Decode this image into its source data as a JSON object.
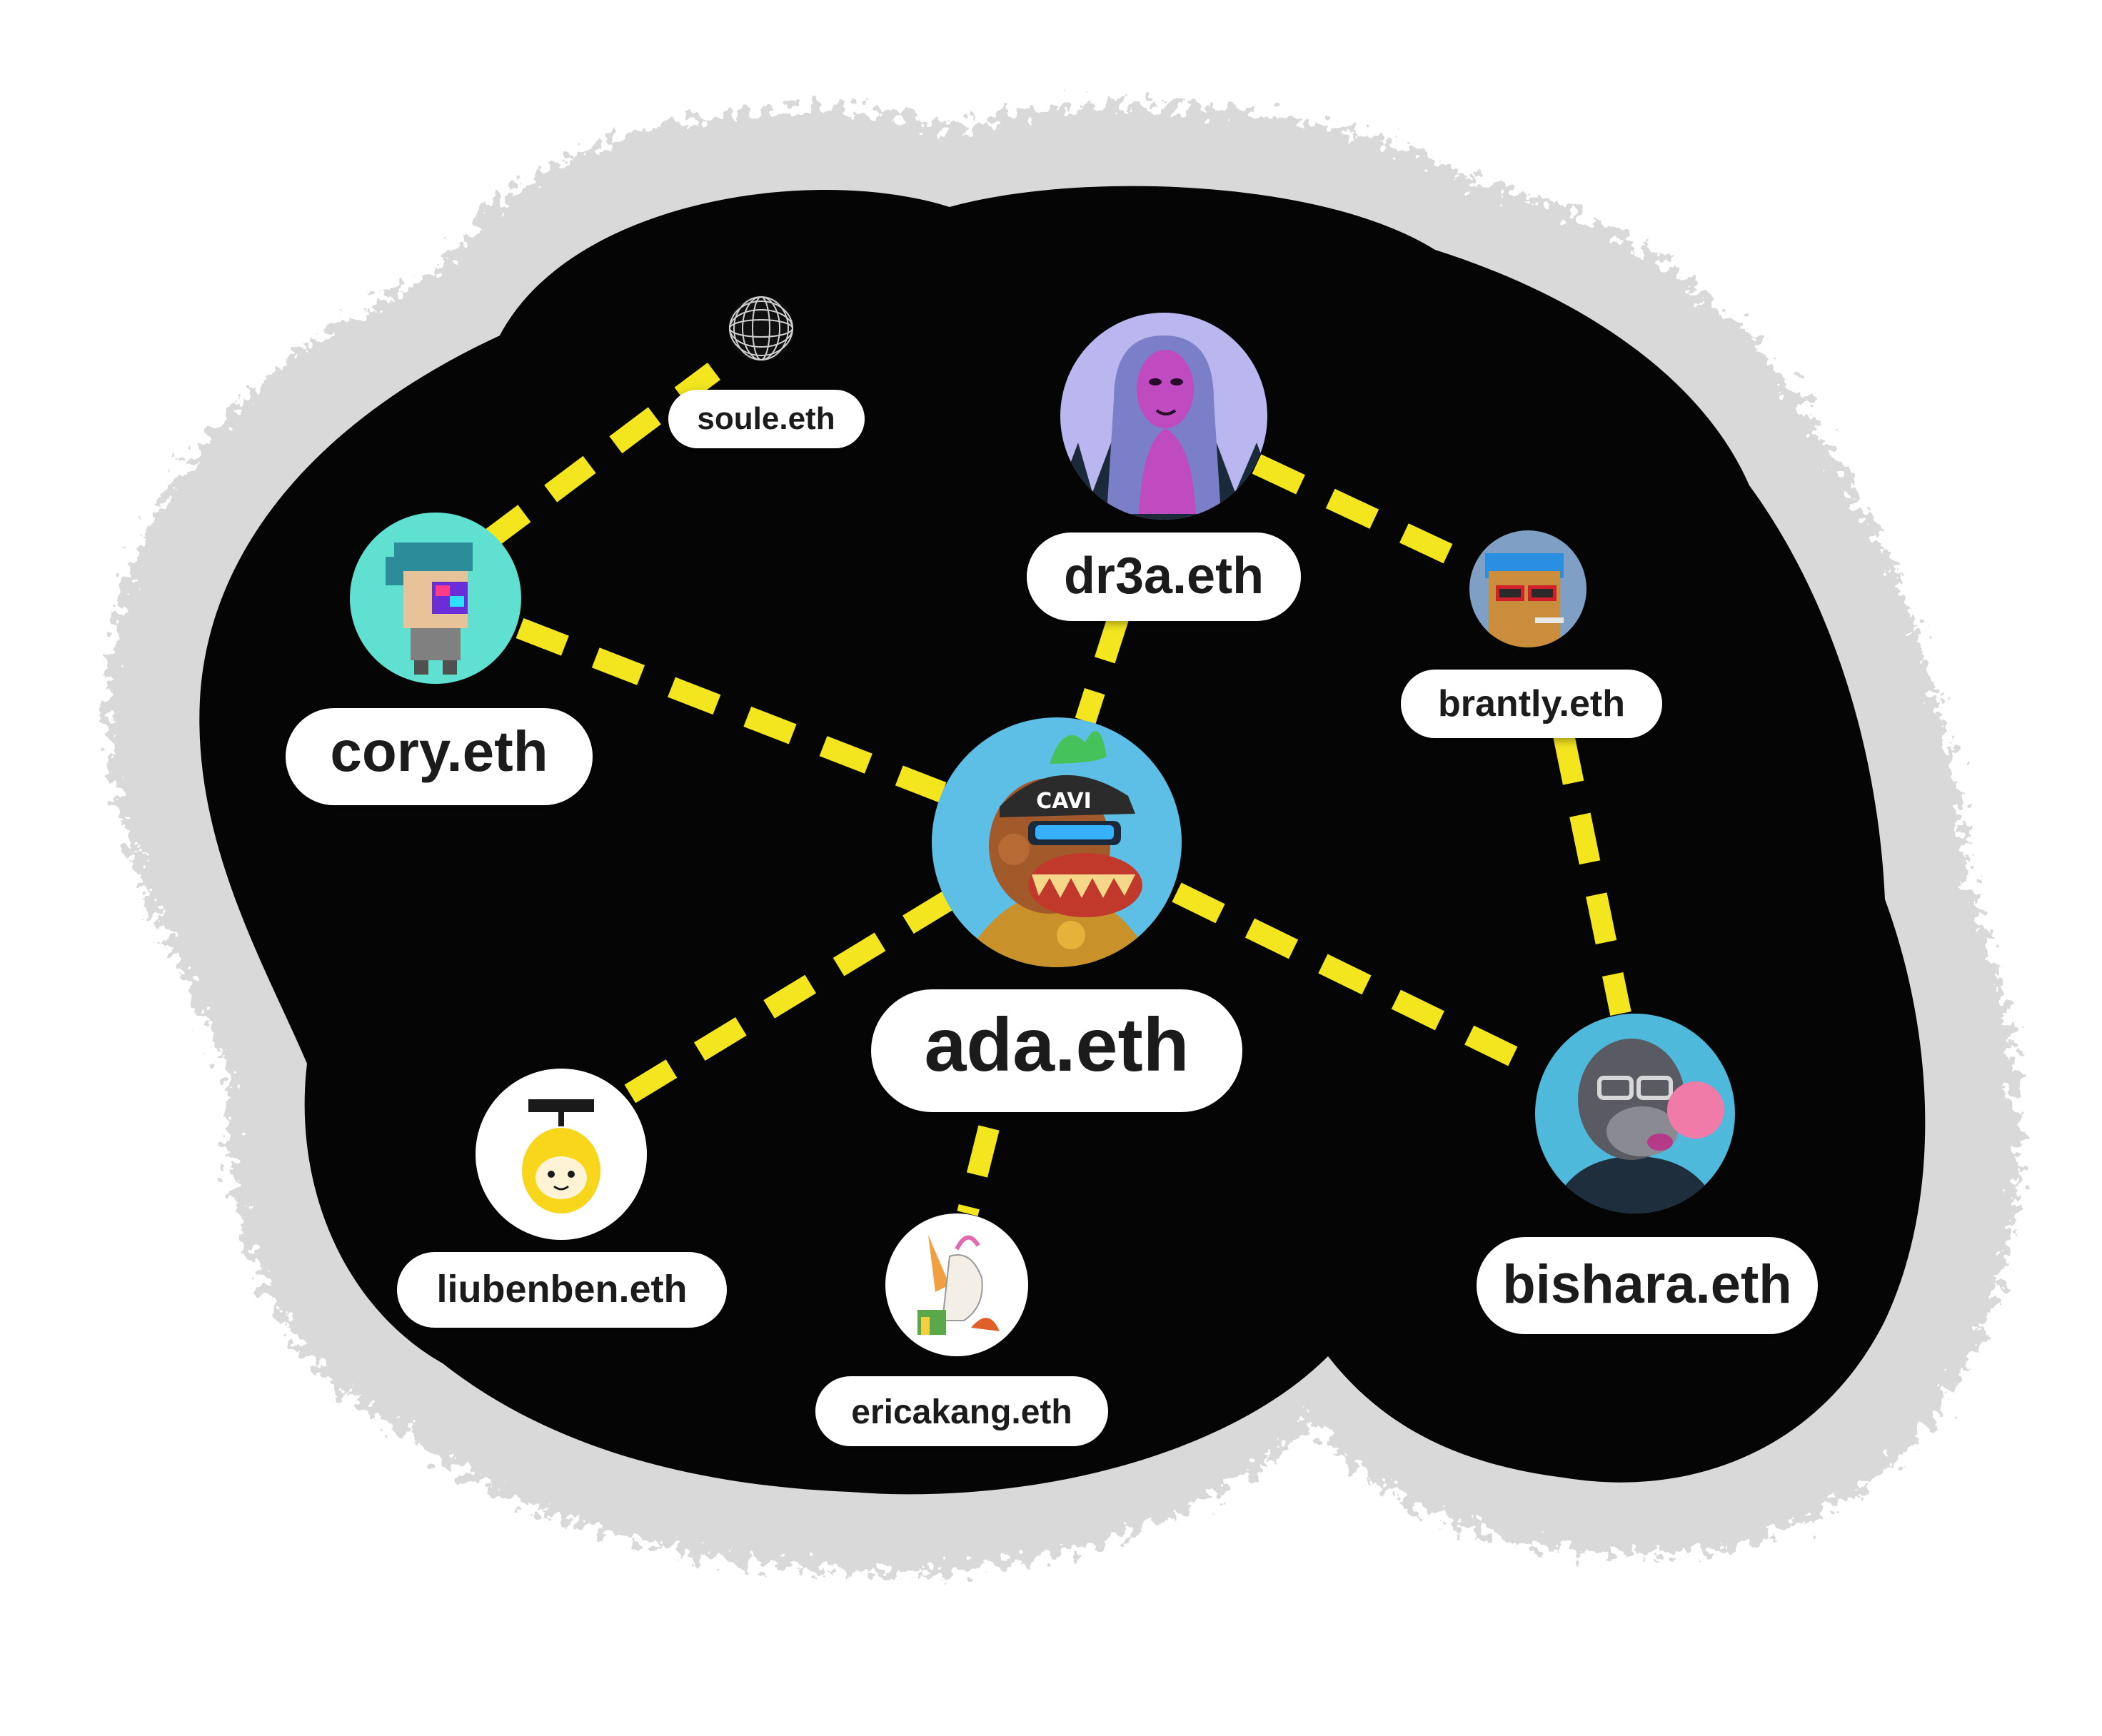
{
  "colors": {
    "background": "#ffffff",
    "cloud": "#050505",
    "cloud_edge": "#d9d9d9",
    "edge": "#f3e61f",
    "label_bg": "#ffffff",
    "label_text": "#1b1b1b"
  },
  "nodes": [
    {
      "id": "ada",
      "label": "ada.eth",
      "avatar": "ape-with-cap-avatar",
      "avatar_bg": "#5ebfe6"
    },
    {
      "id": "cory",
      "label": "cory.eth",
      "avatar": "pixel-character-avatar",
      "avatar_bg": "#5fe0d0"
    },
    {
      "id": "soule",
      "label": "soule.eth",
      "avatar": "wire-sphere-avatar",
      "avatar_bg": "#101010"
    },
    {
      "id": "dr3a",
      "label": "dr3a.eth",
      "avatar": "purple-woman-avatar",
      "avatar_bg": "#b9b6f0"
    },
    {
      "id": "brantly",
      "label": "brantly.eth",
      "avatar": "sunglasses-punk-avatar",
      "avatar_bg": "#7f9fc4"
    },
    {
      "id": "bishara",
      "label": "bishara.eth",
      "avatar": "gorilla-bubblegum-avatar",
      "avatar_bg": "#4fb9dc"
    },
    {
      "id": "liubenben",
      "label": "liubenben.eth",
      "avatar": "yellow-character-avatar",
      "avatar_bg": "#ffffff"
    },
    {
      "id": "ericakang",
      "label": "ericakang.eth",
      "avatar": "unicorn-art-avatar",
      "avatar_bg": "#ffffff"
    }
  ],
  "edges": [
    {
      "from": "cory",
      "to": "soule"
    },
    {
      "from": "cory",
      "to": "ada"
    },
    {
      "from": "dr3a",
      "to": "ada"
    },
    {
      "from": "dr3a",
      "to": "brantly"
    },
    {
      "from": "brantly",
      "to": "bishara"
    },
    {
      "from": "ada",
      "to": "bishara"
    },
    {
      "from": "ada",
      "to": "liubenben"
    },
    {
      "from": "ada",
      "to": "ericakang"
    }
  ]
}
